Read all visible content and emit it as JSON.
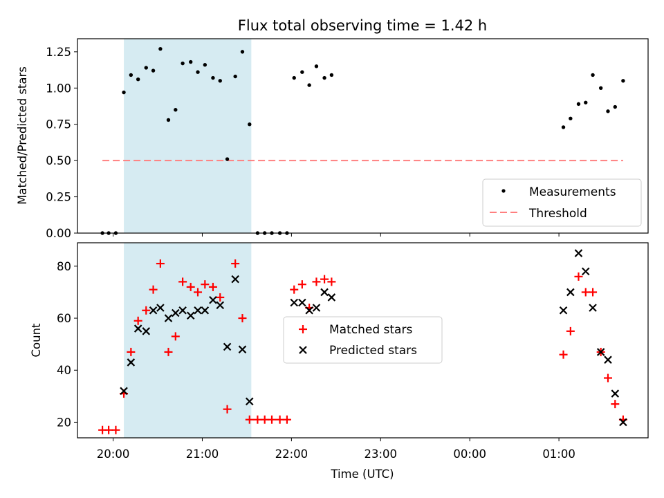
{
  "chart_data": [
    {
      "type": "scatter",
      "title": "Flux total observing time = 1.42 h",
      "ylabel": "Matched/Predicted stars",
      "xlabel": "",
      "ylim": [
        0,
        1.34
      ],
      "yticks": [
        "0.00",
        "0.25",
        "0.50",
        "0.75",
        "1.00",
        "1.25"
      ],
      "highlight_span_hours": [
        20.12,
        21.55
      ],
      "highlight_color": "#add8e6",
      "legend_position": "lower-right",
      "series": [
        {
          "name": "Measurements",
          "marker": "dot",
          "color": "#000000",
          "x": [
            19.88,
            19.95,
            20.03,
            20.12,
            20.2,
            20.28,
            20.37,
            20.45,
            20.53,
            20.62,
            20.7,
            20.78,
            20.87,
            20.95,
            21.03,
            21.12,
            21.2,
            21.28,
            21.37,
            21.45,
            21.53,
            21.62,
            21.7,
            21.78,
            21.87,
            21.95,
            22.03,
            22.12,
            22.2,
            22.28,
            22.37,
            22.45,
            25.05,
            25.13,
            25.22,
            25.3,
            25.38,
            25.47,
            25.55,
            25.63,
            25.72
          ],
          "y": [
            0.0,
            0.0,
            0.0,
            0.97,
            1.09,
            1.06,
            1.14,
            1.12,
            1.27,
            0.78,
            0.85,
            1.17,
            1.18,
            1.11,
            1.16,
            1.07,
            1.05,
            0.51,
            1.08,
            1.25,
            0.75,
            0.0,
            0.0,
            0.0,
            0.0,
            0.0,
            1.07,
            1.11,
            1.02,
            1.15,
            1.07,
            1.09,
            0.73,
            0.79,
            0.89,
            0.9,
            1.09,
            1.0,
            0.84,
            0.87,
            1.05
          ]
        },
        {
          "name": "Threshold",
          "marker": "dashed-line",
          "color": "#ff7f7f",
          "x": [
            19.88,
            25.72
          ],
          "y": [
            0.5,
            0.5
          ]
        }
      ]
    },
    {
      "type": "scatter",
      "title": "",
      "ylabel": "Count",
      "xlabel": "Time (UTC)",
      "ylim": [
        14,
        89
      ],
      "yticks": [
        "20",
        "40",
        "60",
        "80"
      ],
      "xticks": [
        "20:00",
        "21:00",
        "22:00",
        "23:00",
        "00:00",
        "01:00"
      ],
      "xlim_hours": [
        19.6,
        26.0
      ],
      "highlight_span_hours": [
        20.12,
        21.55
      ],
      "highlight_color": "#add8e6",
      "legend_position": "center",
      "series": [
        {
          "name": "Matched stars",
          "marker": "plus",
          "color": "#ff0000",
          "x": [
            19.88,
            19.95,
            20.03,
            20.12,
            20.2,
            20.28,
            20.37,
            20.45,
            20.53,
            20.62,
            20.7,
            20.78,
            20.87,
            20.95,
            21.03,
            21.12,
            21.2,
            21.28,
            21.37,
            21.45,
            21.53,
            21.62,
            21.7,
            21.78,
            21.87,
            21.95,
            22.03,
            22.12,
            22.2,
            22.28,
            22.37,
            22.45,
            25.05,
            25.13,
            25.22,
            25.3,
            25.38,
            25.47,
            25.55,
            25.63,
            25.72
          ],
          "y": [
            17,
            17,
            17,
            31,
            47,
            59,
            63,
            71,
            81,
            47,
            53,
            74,
            72,
            70,
            73,
            72,
            68,
            25,
            81,
            60,
            21,
            21,
            21,
            21,
            21,
            21,
            71,
            73,
            64,
            74,
            75,
            74,
            46,
            55,
            76,
            70,
            70,
            47,
            37,
            27,
            21
          ]
        },
        {
          "name": "Predicted stars",
          "marker": "x",
          "color": "#000000",
          "x": [
            20.12,
            20.2,
            20.28,
            20.37,
            20.45,
            20.53,
            20.62,
            20.7,
            20.78,
            20.87,
            20.95,
            21.03,
            21.12,
            21.2,
            21.28,
            21.37,
            21.45,
            21.53,
            22.03,
            22.12,
            22.2,
            22.28,
            22.37,
            22.45,
            25.05,
            25.13,
            25.22,
            25.3,
            25.38,
            25.47,
            25.55,
            25.63,
            25.72
          ],
          "y": [
            32,
            43,
            56,
            55,
            63,
            64,
            60,
            62,
            63,
            61,
            63,
            63,
            67,
            65,
            49,
            75,
            48,
            28,
            66,
            66,
            63,
            64,
            70,
            68,
            63,
            70,
            85,
            78,
            64,
            47,
            44,
            31,
            20
          ]
        }
      ]
    }
  ]
}
